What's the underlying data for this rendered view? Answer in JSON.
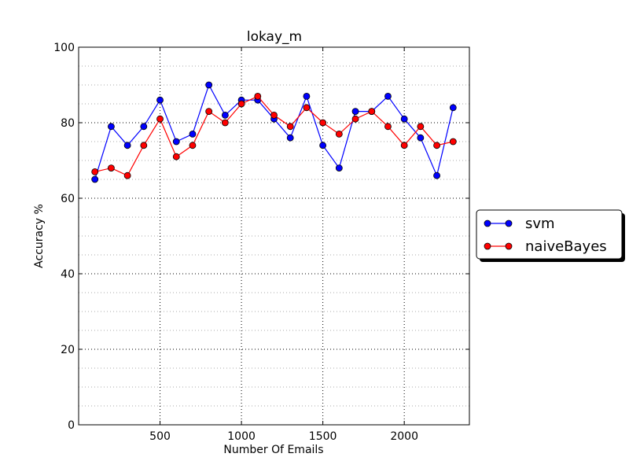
{
  "chart_data": {
    "type": "line",
    "title": "lokay_m",
    "xlabel": "Number Of Emails",
    "ylabel": "Accuracy %",
    "xlim": [
      0,
      2400
    ],
    "ylim": [
      0,
      100
    ],
    "x_ticks": [
      500,
      1000,
      1500,
      2000
    ],
    "x_tick_labels": [
      "500",
      "1000",
      "1500",
      "2000"
    ],
    "y_ticks": [
      0,
      20,
      40,
      60,
      80,
      100
    ],
    "y_tick_labels": [
      "0",
      "20",
      "40",
      "60",
      "80",
      "100"
    ],
    "y_minor_ticks": [
      5,
      10,
      15,
      25,
      30,
      35,
      45,
      50,
      55,
      65,
      70,
      75,
      85,
      90,
      95
    ],
    "grid": true,
    "legend_position": "right, outside plot",
    "x": [
      100,
      200,
      300,
      400,
      500,
      600,
      700,
      800,
      900,
      1000,
      1100,
      1200,
      1300,
      1400,
      1500,
      1600,
      1700,
      1800,
      1900,
      2000,
      2100,
      2200,
      2300
    ],
    "series": [
      {
        "name": "svm",
        "color": "#0000ff",
        "values": [
          65,
          79,
          74,
          79,
          86,
          75,
          77,
          90,
          82,
          86,
          86,
          81,
          76,
          87,
          74,
          68,
          83,
          83,
          87,
          81,
          76,
          66,
          84
        ]
      },
      {
        "name": "naiveBayes",
        "color": "#ff0000",
        "values": [
          67,
          68,
          66,
          74,
          81,
          71,
          74,
          83,
          80,
          85,
          87,
          82,
          79,
          84,
          80,
          77,
          81,
          83,
          79,
          74,
          79,
          74,
          75
        ]
      }
    ]
  }
}
